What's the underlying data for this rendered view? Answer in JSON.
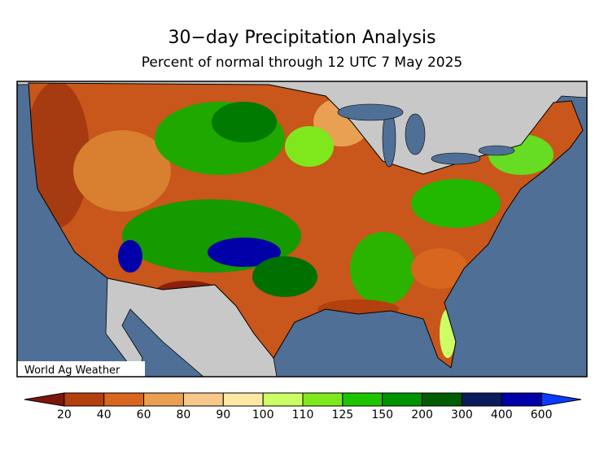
{
  "title": "30−day Precipitation Analysis",
  "subtitle": "Percent of normal through 12 UTC 7 May 2025",
  "credit": "World Ag Weather",
  "legend": {
    "ticks": [
      20,
      40,
      60,
      80,
      90,
      100,
      110,
      125,
      150,
      200,
      300,
      400,
      600
    ],
    "colors": [
      "#7d160c",
      "#b3400f",
      "#d8661e",
      "#e9a052",
      "#f6c98a",
      "#fde8a6",
      "#ccff66",
      "#7fe81c",
      "#1fc400",
      "#009300",
      "#005c00",
      "#0a1d5a",
      "#0000a8",
      "#0a3cff"
    ]
  }
}
